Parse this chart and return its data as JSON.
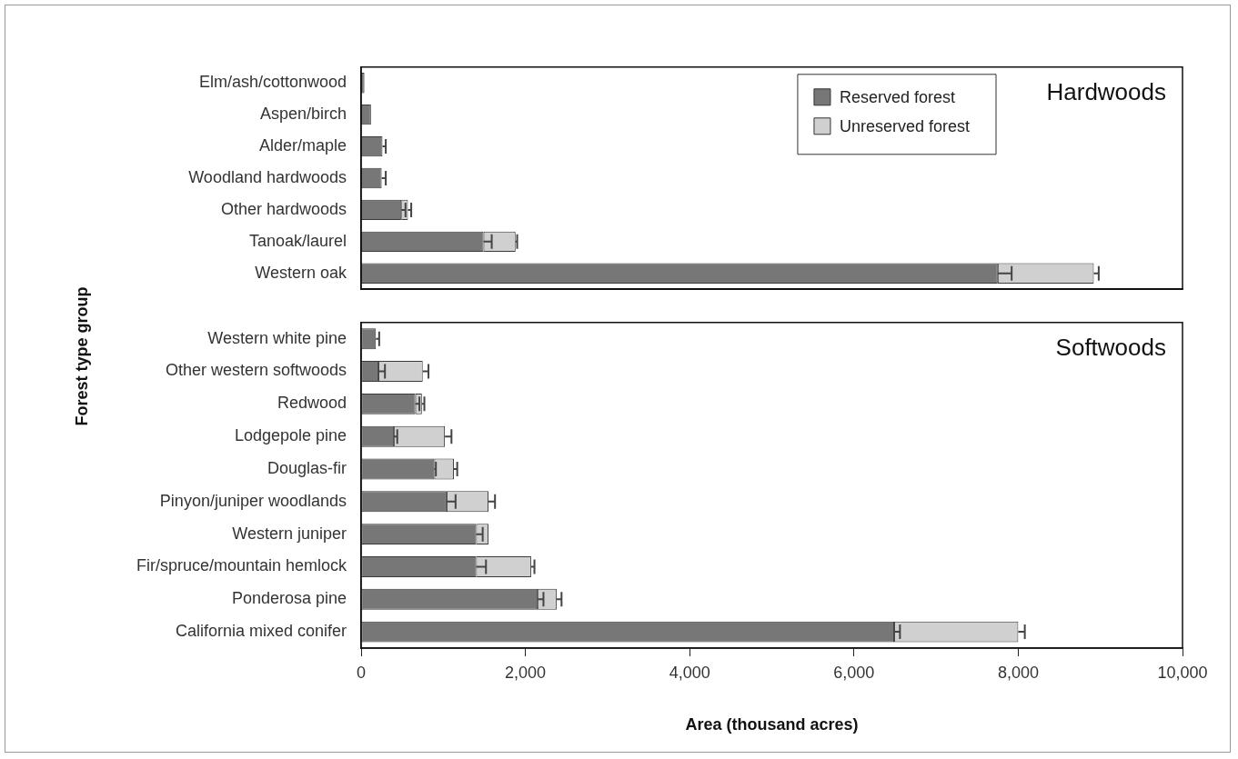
{
  "chart_data": [
    {
      "type": "bar",
      "orientation": "horizontal",
      "stacked": true,
      "title": "Hardwoods",
      "ylabel": "Forest type group",
      "legend": "top right",
      "tick_labels": "y",
      "grid": false,
      "categories": [
        "Elm/ash/cottonwood",
        "Aspen/birch",
        "Alder/maple",
        "Woodland hardwoods",
        "Other hardwoods",
        "Tanoak/laurel",
        "Western oak"
      ],
      "xlim": [
        0,
        10000
      ],
      "series": [
        {
          "name": "Reserved forest",
          "color": "#777777",
          "values": [
            40,
            120,
            260,
            250,
            490,
            1490,
            7750
          ],
          "errors": [
            null,
            null,
            [
              260,
              300
            ],
            [
              250,
              300
            ],
            [
              490,
              540
            ],
            [
              1490,
              1590
            ],
            [
              7750,
              7920
            ]
          ]
        },
        {
          "name": "Unreserved forest",
          "color": "#d0d0d0",
          "values": [
            null,
            null,
            null,
            null,
            80,
            390,
            1170
          ],
          "errors": [
            null,
            null,
            null,
            null,
            [
              570,
              610
            ],
            [
              1880,
              1900
            ],
            [
              8920,
              8980
            ]
          ]
        }
      ]
    },
    {
      "type": "bar",
      "orientation": "horizontal",
      "stacked": true,
      "title": "Softwoods",
      "xlabel": "Area (thousand acres)",
      "grid": false,
      "categories": [
        "Western white pine",
        "Other western softwoods",
        "Redwood",
        "Lodgepole pine",
        "Douglas-fir",
        "Pinyon/juniper woodlands",
        "Western juniper",
        "Fir/spruce/mountain hemlock",
        "Ponderosa pine",
        "California mixed conifer"
      ],
      "xlim": [
        0,
        10000
      ],
      "xticks": [
        0,
        {
          "value": 2000,
          "label": "2,000"
        },
        {
          "value": 4000,
          "label": "4,000"
        },
        {
          "value": 6000,
          "label": "6,000"
        },
        {
          "value": 8000,
          "label": "8,000"
        },
        {
          "value": 10000,
          "label": "10,000"
        }
      ],
      "series": [
        {
          "color": "#777777",
          "values": [
            180,
            210,
            660,
            400,
            890,
            1040,
            1400,
            1400,
            2150,
            6490
          ],
          "errors": [
            [
              180,
              220
            ],
            [
              210,
              290
            ],
            [
              660,
              710
            ],
            [
              400,
              440
            ],
            [
              890,
              910
            ],
            [
              1040,
              1150
            ],
            [
              1400,
              1480
            ],
            [
              1400,
              1520
            ],
            [
              2150,
              2220
            ],
            [
              6490,
              6560
            ]
          ]
        },
        {
          "color": "#d0d0d0",
          "values": [
            null,
            540,
            80,
            620,
            240,
            510,
            150,
            670,
            230,
            1510
          ],
          "errors": [
            null,
            [
              750,
              820
            ],
            [
              740,
              770
            ],
            [
              1020,
              1100
            ],
            [
              1130,
              1170
            ],
            [
              1550,
              1630
            ],
            null,
            [
              2070,
              2110
            ],
            [
              2380,
              2440
            ],
            [
              8000,
              8080
            ]
          ]
        }
      ]
    }
  ]
}
